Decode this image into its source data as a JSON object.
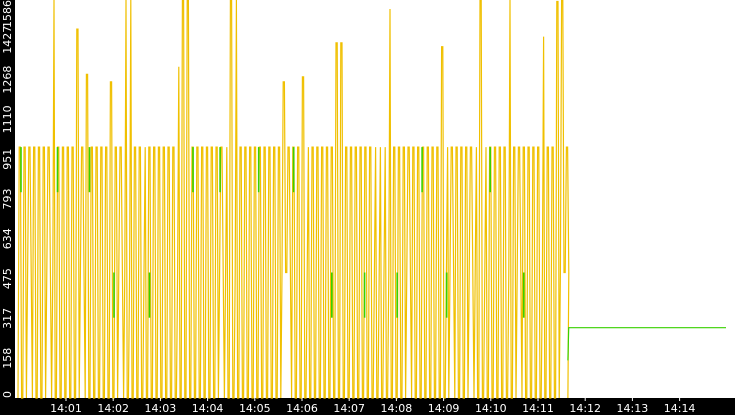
{
  "chart_data": {
    "type": "line",
    "title": "",
    "xlabel": "",
    "ylabel": "",
    "ylim": [
      0,
      1586
    ],
    "y_ticks": [
      "0",
      "158",
      "317",
      "475",
      "634",
      "793",
      "951",
      "1110",
      "1268",
      "1427",
      "1586"
    ],
    "x_ticks": [
      "14:01",
      "14:02",
      "14:03",
      "14:04",
      "14:05",
      "14:06",
      "14:07",
      "14:08",
      "14:09",
      "14:10",
      "14:11",
      "14:12",
      "14:13",
      "14:14"
    ],
    "x_range_minutes": [
      "14:00:40",
      "14:14:59"
    ],
    "grid": false,
    "legend": "none",
    "series": [
      {
        "color": "#f0c000",
        "description_note": "rapidly oscillating signal between 0 and ~1000 with peaks up to 1586, ends near 14:11:38",
        "baseline_low": 0,
        "plateau_high": 1000,
        "plateau_mid": 500,
        "peaks": [
          {
            "x": "14:00:40",
            "y": 1586
          },
          {
            "x": "14:01:10",
            "y": 1470
          },
          {
            "x": "14:01:25",
            "y": 1290
          },
          {
            "x": "14:01:55",
            "y": 1260
          },
          {
            "x": "14:02:15",
            "y": 1586
          },
          {
            "x": "14:02:20",
            "y": 1586
          },
          {
            "x": "14:03:20",
            "y": 1320
          },
          {
            "x": "14:03:30",
            "y": 1586
          },
          {
            "x": "14:04:30",
            "y": 1586
          },
          {
            "x": "14:05:35",
            "y": 1260
          },
          {
            "x": "14:06:00",
            "y": 1280
          },
          {
            "x": "14:06:45",
            "y": 1415
          },
          {
            "x": "14:07:50",
            "y": 1550
          },
          {
            "x": "14:08:55",
            "y": 1400
          },
          {
            "x": "14:09:45",
            "y": 1586
          },
          {
            "x": "14:10:20",
            "y": 1586
          },
          {
            "x": "14:11:05",
            "y": 1440
          },
          {
            "x": "14:11:25",
            "y": 1580
          },
          {
            "x": "14:11:30",
            "y": 1586
          }
        ],
        "end_x": "14:11:38"
      },
      {
        "color": "#39d000",
        "description_note": "green series mostly hidden behind yellow; visible short segments, then steady ~280 from 14:11:38 onward",
        "tail": [
          {
            "x": "14:11:38",
            "y": 150
          },
          {
            "x": "14:11:39",
            "y": 280
          },
          {
            "x": "14:14:59",
            "y": 280
          }
        ]
      }
    ]
  }
}
